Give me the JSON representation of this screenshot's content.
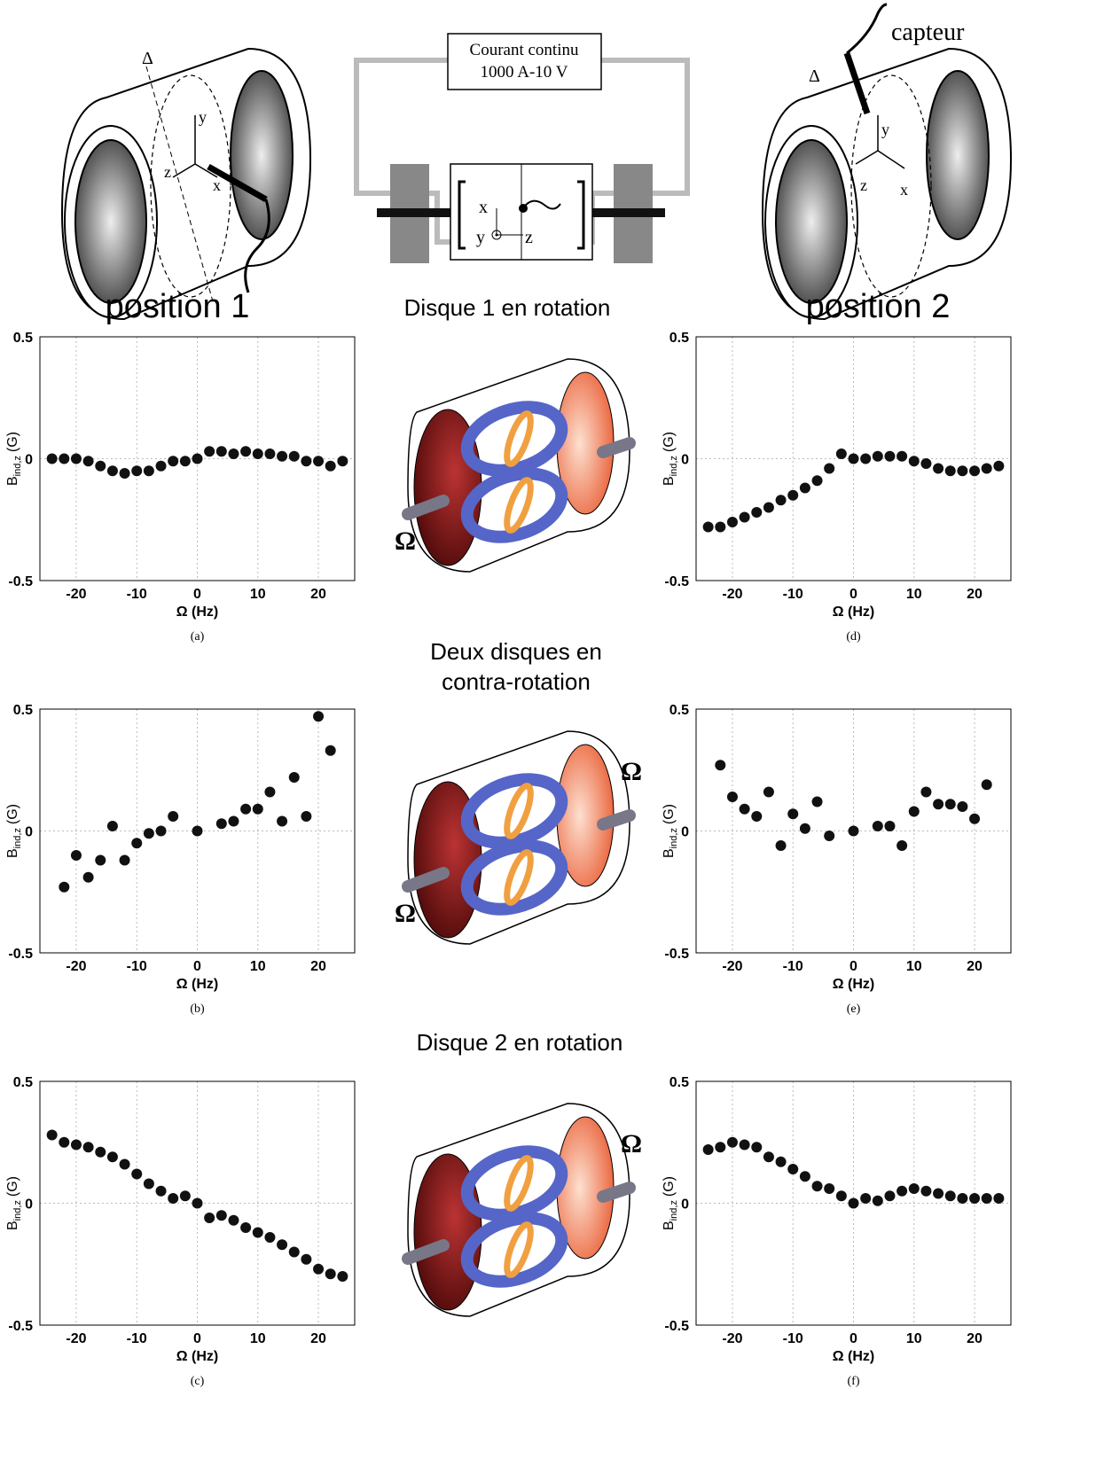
{
  "headings": {
    "left": "position 1",
    "right": "position 2",
    "row1": "Disque 1  en rotation",
    "row2_line1": "Deux disques en",
    "row2_line2": "contra-rotation",
    "row3": "Disque 2  en rotation"
  },
  "diagram": {
    "box_line1": "Courant continu",
    "box_line2": "1000 A-10 V",
    "sensor": "capteur",
    "delta": "Δ",
    "axis_x": "x",
    "axis_y": "y",
    "axis_z": "z",
    "omega": "Ω"
  },
  "chart_data": [
    {
      "type": "scatter",
      "caption": "(a)",
      "xlabel": "Ω (Hz)",
      "ylabel": "B",
      "ylabel_sub": "ind,z",
      "ylabel_unit": "(G)",
      "color": "#111111",
      "grid": true,
      "x": [
        -24,
        -22,
        -20,
        -18,
        -16,
        -14,
        -12,
        -10,
        -8,
        -6,
        -4,
        -2,
        0,
        2,
        4,
        6,
        8,
        10,
        12,
        14,
        16,
        18,
        20,
        22,
        24
      ],
      "values": [
        0,
        0,
        0,
        -0.01,
        -0.03,
        -0.05,
        -0.06,
        -0.05,
        -0.05,
        -0.03,
        -0.01,
        -0.01,
        0,
        0.03,
        0.03,
        0.02,
        0.03,
        0.02,
        0.02,
        0.01,
        0.01,
        -0.01,
        -0.01,
        -0.03,
        -0.01
      ],
      "xlim": [
        -26,
        26
      ],
      "ylim": [
        -0.5,
        0.5
      ],
      "xticks": [
        -20,
        -10,
        0,
        10,
        20
      ],
      "yticks": [
        -0.5,
        0,
        0.5
      ]
    },
    {
      "type": "scatter",
      "caption": "(d)",
      "xlabel": "Ω (Hz)",
      "ylabel": "B",
      "ylabel_sub": "ind,z",
      "ylabel_unit": "(G)",
      "color": "#111111",
      "grid": true,
      "x": [
        -24,
        -22,
        -20,
        -18,
        -16,
        -14,
        -12,
        -10,
        -8,
        -6,
        -4,
        -2,
        0,
        2,
        4,
        6,
        8,
        10,
        12,
        14,
        16,
        18,
        20,
        22,
        24
      ],
      "values": [
        -0.28,
        -0.28,
        -0.26,
        -0.24,
        -0.22,
        -0.2,
        -0.17,
        -0.15,
        -0.12,
        -0.09,
        -0.04,
        0.02,
        0,
        0,
        0.01,
        0.01,
        0.01,
        -0.01,
        -0.02,
        -0.04,
        -0.05,
        -0.05,
        -0.05,
        -0.04,
        -0.03
      ],
      "xlim": [
        -26,
        26
      ],
      "ylim": [
        -0.5,
        0.5
      ],
      "xticks": [
        -20,
        -10,
        0,
        10,
        20
      ],
      "yticks": [
        -0.5,
        0,
        0.5
      ]
    },
    {
      "type": "scatter",
      "caption": "(b)",
      "xlabel": "Ω (Hz)",
      "ylabel": "B",
      "ylabel_sub": "ind,z",
      "ylabel_unit": "(G)",
      "color": "#111111",
      "grid": true,
      "x": [
        -22,
        -20,
        -18,
        -16,
        -14,
        -12,
        -10,
        -8,
        -6,
        -4,
        0,
        4,
        6,
        8,
        10,
        12,
        14,
        16,
        18,
        20,
        22
      ],
      "values": [
        -0.23,
        -0.1,
        -0.19,
        -0.12,
        0.02,
        -0.12,
        -0.05,
        -0.01,
        0,
        0.06,
        0,
        0.03,
        0.04,
        0.09,
        0.09,
        0.16,
        0.04,
        0.22,
        0.06,
        0.47,
        0.33
      ],
      "xlim": [
        -26,
        26
      ],
      "ylim": [
        -0.5,
        0.5
      ],
      "xticks": [
        -20,
        -10,
        0,
        10,
        20
      ],
      "yticks": [
        -0.5,
        0,
        0.5
      ]
    },
    {
      "type": "scatter",
      "caption": "(e)",
      "xlabel": "Ω (Hz)",
      "ylabel": "B",
      "ylabel_sub": "ind,z",
      "ylabel_unit": "(G)",
      "color": "#111111",
      "grid": true,
      "x": [
        -22,
        -20,
        -18,
        -16,
        -14,
        -12,
        -10,
        -8,
        -6,
        -4,
        0,
        4,
        6,
        8,
        10,
        12,
        14,
        16,
        18,
        20,
        22
      ],
      "values": [
        0.27,
        0.14,
        0.09,
        0.06,
        0.16,
        -0.06,
        0.07,
        0.01,
        0.12,
        -0.02,
        0,
        0.02,
        0.02,
        -0.06,
        0.08,
        0.16,
        0.11,
        0.11,
        0.1,
        0.05,
        0.19
      ],
      "xlim": [
        -26,
        26
      ],
      "ylim": [
        -0.5,
        0.5
      ],
      "xticks": [
        -20,
        -10,
        0,
        10,
        20
      ],
      "yticks": [
        -0.5,
        0,
        0.5
      ]
    },
    {
      "type": "scatter",
      "caption": "(c)",
      "xlabel": "Ω (Hz)",
      "ylabel": "B",
      "ylabel_sub": "ind,z",
      "ylabel_unit": "(G)",
      "color": "#111111",
      "grid": true,
      "x": [
        -24,
        -22,
        -20,
        -18,
        -16,
        -14,
        -12,
        -10,
        -8,
        -6,
        -4,
        -2,
        0,
        2,
        4,
        6,
        8,
        10,
        12,
        14,
        16,
        18,
        20,
        22,
        24
      ],
      "values": [
        0.28,
        0.25,
        0.24,
        0.23,
        0.21,
        0.19,
        0.16,
        0.12,
        0.08,
        0.05,
        0.02,
        0.03,
        0,
        -0.06,
        -0.05,
        -0.07,
        -0.1,
        -0.12,
        -0.14,
        -0.17,
        -0.2,
        -0.23,
        -0.27,
        -0.29,
        -0.3
      ],
      "xlim": [
        -26,
        26
      ],
      "ylim": [
        -0.5,
        0.5
      ],
      "xticks": [
        -20,
        -10,
        0,
        10,
        20
      ],
      "yticks": [
        -0.5,
        0,
        0.5
      ]
    },
    {
      "type": "scatter",
      "caption": "(f)",
      "xlabel": "Ω (Hz)",
      "ylabel": "B",
      "ylabel_sub": "ind,z",
      "ylabel_unit": "(G)",
      "color": "#111111",
      "grid": true,
      "x": [
        -24,
        -22,
        -20,
        -18,
        -16,
        -14,
        -12,
        -10,
        -8,
        -6,
        -4,
        -2,
        0,
        2,
        4,
        6,
        8,
        10,
        12,
        14,
        16,
        18,
        20,
        22,
        24
      ],
      "values": [
        0.22,
        0.23,
        0.25,
        0.24,
        0.23,
        0.19,
        0.17,
        0.14,
        0.11,
        0.07,
        0.06,
        0.03,
        0,
        0.02,
        0.01,
        0.03,
        0.05,
        0.06,
        0.05,
        0.04,
        0.03,
        0.02,
        0.02,
        0.02,
        0.02
      ],
      "xlim": [
        -26,
        26
      ],
      "ylim": [
        -0.5,
        0.5
      ],
      "xticks": [
        -20,
        -10,
        0,
        10,
        20
      ],
      "yticks": [
        -0.5,
        0,
        0.5
      ]
    }
  ]
}
